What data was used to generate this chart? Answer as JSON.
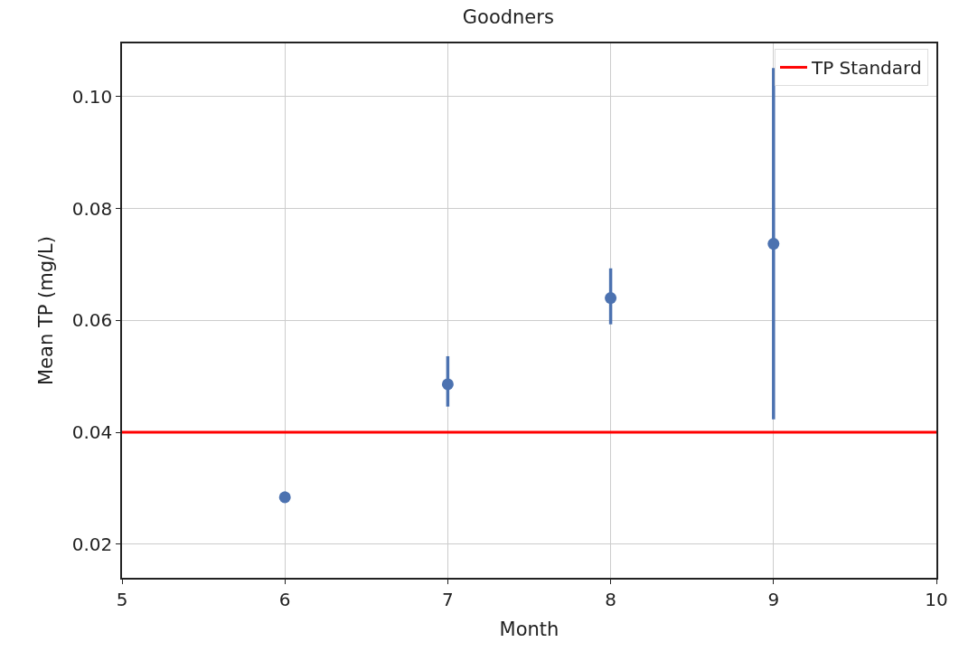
{
  "chart_data": {
    "type": "scatter",
    "title": "Goodners",
    "xlabel": "Month",
    "ylabel": "Mean TP (mg/L)",
    "x": [
      6,
      7,
      8,
      9
    ],
    "series": [
      {
        "color": "#4c72b0",
        "values": [
          0.0284,
          0.0486,
          0.064,
          0.0737
        ],
        "errors": [
          [
            0.0276,
            0.0294
          ],
          [
            0.0446,
            0.0536
          ],
          [
            0.0593,
            0.0693
          ],
          [
            0.0423,
            0.1051
          ]
        ]
      }
    ],
    "ref_lines": [
      {
        "axis": "y",
        "value": 0.04,
        "label": "TP Standard",
        "color": "#ff0000"
      }
    ],
    "xlim": [
      5,
      10
    ],
    "xticks": [
      5,
      6,
      7,
      8,
      9,
      10
    ],
    "ylim": [
      0.014,
      0.1095
    ],
    "yticks": [
      {
        "value": 0.02,
        "label": "0.02"
      },
      {
        "value": 0.04,
        "label": "0.04"
      },
      {
        "value": 0.06,
        "label": "0.06"
      },
      {
        "value": 0.08,
        "label": "0.08"
      },
      {
        "value": 0.1,
        "label": "0.10"
      }
    ],
    "grid": true,
    "legend": "top right",
    "marker": "circle"
  }
}
